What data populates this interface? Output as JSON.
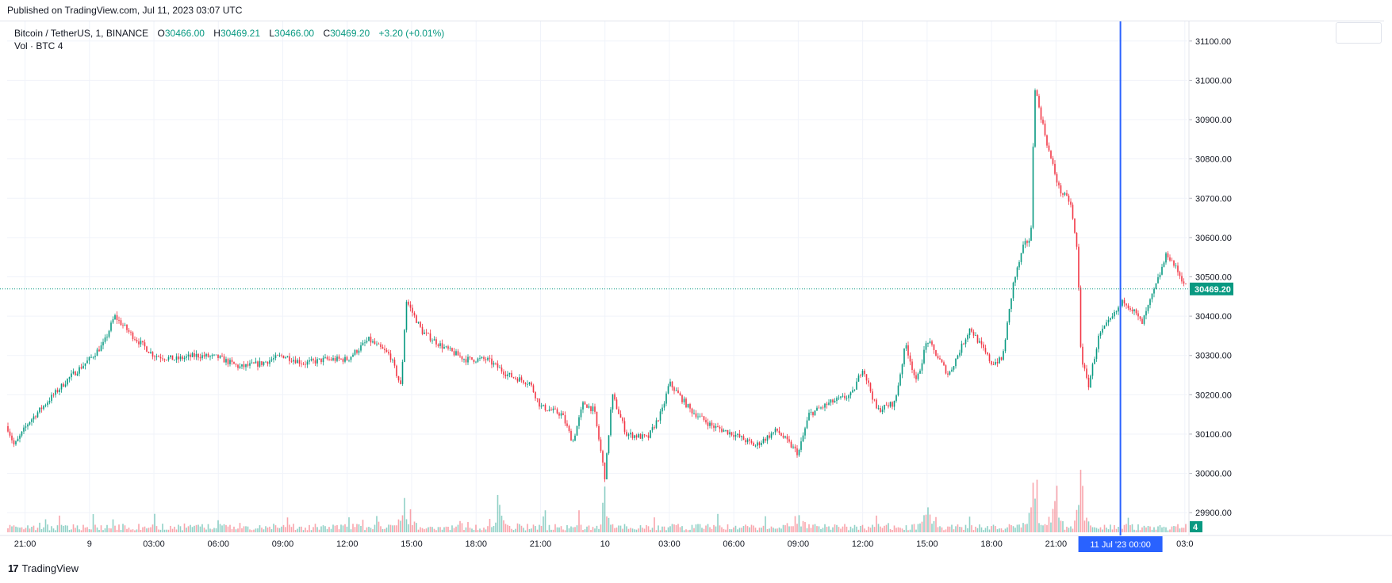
{
  "header": {
    "published": "Published on TradingView.com, Jul 11, 2023 03:07 UTC"
  },
  "legend": {
    "symbol": "Bitcoin / TetherUS, 1, BINANCE",
    "open_label": "O",
    "open": "30466.00",
    "high_label": "H",
    "high": "30469.21",
    "low_label": "L",
    "low": "30466.00",
    "close_label": "C",
    "close": "30469.20",
    "change": "+3.20 (+0.01%)",
    "vol_label": "Vol · BTC",
    "vol_value": "4"
  },
  "footer": {
    "brand": "TradingView",
    "logo_text": "17"
  },
  "colors": {
    "up": "#089981",
    "down": "#f23645",
    "crosshair": "#2962ff",
    "grid": "#f0f3fa"
  },
  "chart_data": {
    "type": "candlestick",
    "symbol": "BTCUSDT",
    "interval": "1",
    "ylim": [
      29850,
      31150
    ],
    "y_ticks": [
      29900,
      30000,
      30100,
      30200,
      30300,
      30400,
      30500,
      30600,
      30700,
      30800,
      30900,
      31000,
      31100
    ],
    "y_tick_labels": [
      "29900.00",
      "30000.00",
      "30100.00",
      "30200.00",
      "30300.00",
      "30400.00",
      "30500.00",
      "30600.00",
      "30700.00",
      "30800.00",
      "30900.00",
      "31000.00",
      "31100.00"
    ],
    "x_ticks": [
      "2023-07-08 21:00",
      "2023-07-09 00:00",
      "2023-07-09 03:00",
      "2023-07-09 06:00",
      "2023-07-09 09:00",
      "2023-07-09 12:00",
      "2023-07-09 15:00",
      "2023-07-09 18:00",
      "2023-07-09 21:00",
      "2023-07-10 00:00",
      "2023-07-10 03:00",
      "2023-07-10 06:00",
      "2023-07-10 09:00",
      "2023-07-10 12:00",
      "2023-07-10 15:00",
      "2023-07-10 18:00",
      "2023-07-10 21:00",
      "2023-07-11 03:00"
    ],
    "x_tick_labels": [
      "21:00",
      "9",
      "03:00",
      "06:00",
      "09:00",
      "12:00",
      "15:00",
      "18:00",
      "21:00",
      "10",
      "03:00",
      "06:00",
      "09:00",
      "12:00",
      "15:00",
      "18:00",
      "21:00",
      "03:0"
    ],
    "x_range": [
      "2023-07-08 20:10",
      "2023-07-11 03:07"
    ],
    "price_path": [
      [
        "2023-07-08 20:10",
        30120
      ],
      [
        "2023-07-08 20:30",
        30070
      ],
      [
        "2023-07-08 21:10",
        30130
      ],
      [
        "2023-07-08 22:00",
        30180
      ],
      [
        "2023-07-08 23:00",
        30240
      ],
      [
        "2023-07-09 00:00",
        30290
      ],
      [
        "2023-07-09 00:40",
        30330
      ],
      [
        "2023-07-09 01:10",
        30400
      ],
      [
        "2023-07-09 01:40",
        30370
      ],
      [
        "2023-07-09 02:00",
        30350
      ],
      [
        "2023-07-09 03:00",
        30300
      ],
      [
        "2023-07-09 04:00",
        30290
      ],
      [
        "2023-07-09 05:00",
        30300
      ],
      [
        "2023-07-09 06:00",
        30295
      ],
      [
        "2023-07-09 07:00",
        30270
      ],
      [
        "2023-07-09 08:00",
        30280
      ],
      [
        "2023-07-09 09:00",
        30300
      ],
      [
        "2023-07-09 10:00",
        30280
      ],
      [
        "2023-07-09 11:00",
        30290
      ],
      [
        "2023-07-09 12:00",
        30290
      ],
      [
        "2023-07-09 13:00",
        30340
      ],
      [
        "2023-07-09 14:00",
        30300
      ],
      [
        "2023-07-09 14:30",
        30220
      ],
      [
        "2023-07-09 14:45",
        30440
      ],
      [
        "2023-07-09 15:30",
        30360
      ],
      [
        "2023-07-09 16:30",
        30320
      ],
      [
        "2023-07-09 17:30",
        30290
      ],
      [
        "2023-07-09 18:30",
        30290
      ],
      [
        "2023-07-09 19:30",
        30250
      ],
      [
        "2023-07-09 20:30",
        30230
      ],
      [
        "2023-07-09 21:00",
        30170
      ],
      [
        "2023-07-09 22:00",
        30150
      ],
      [
        "2023-07-09 22:30",
        30080
      ],
      [
        "2023-07-09 23:00",
        30180
      ],
      [
        "2023-07-09 23:30",
        30160
      ],
      [
        "2023-07-10 00:00",
        29990
      ],
      [
        "2023-07-10 00:20",
        30200
      ],
      [
        "2023-07-10 01:00",
        30100
      ],
      [
        "2023-07-10 02:00",
        30090
      ],
      [
        "2023-07-10 02:40",
        30160
      ],
      [
        "2023-07-10 03:00",
        30230
      ],
      [
        "2023-07-10 04:00",
        30160
      ],
      [
        "2023-07-10 05:00",
        30120
      ],
      [
        "2023-07-10 06:00",
        30100
      ],
      [
        "2023-07-10 07:00",
        30070
      ],
      [
        "2023-07-10 08:00",
        30110
      ],
      [
        "2023-07-10 09:00",
        30050
      ],
      [
        "2023-07-10 09:30",
        30150
      ],
      [
        "2023-07-10 10:30",
        30180
      ],
      [
        "2023-07-10 11:30",
        30200
      ],
      [
        "2023-07-10 12:00",
        30270
      ],
      [
        "2023-07-10 12:40",
        30160
      ],
      [
        "2023-07-10 13:30",
        30180
      ],
      [
        "2023-07-10 14:00",
        30330
      ],
      [
        "2023-07-10 14:30",
        30230
      ],
      [
        "2023-07-10 15:00",
        30340
      ],
      [
        "2023-07-10 16:00",
        30250
      ],
      [
        "2023-07-10 17:00",
        30370
      ],
      [
        "2023-07-10 18:00",
        30280
      ],
      [
        "2023-07-10 18:30",
        30290
      ],
      [
        "2023-07-10 19:00",
        30480
      ],
      [
        "2023-07-10 19:30",
        30580
      ],
      [
        "2023-07-10 19:50",
        30600
      ],
      [
        "2023-07-10 20:00",
        30990
      ],
      [
        "2023-07-10 20:15",
        30920
      ],
      [
        "2023-07-10 20:40",
        30820
      ],
      [
        "2023-07-10 21:10",
        30720
      ],
      [
        "2023-07-10 21:40",
        30690
      ],
      [
        "2023-07-10 22:00",
        30560
      ],
      [
        "2023-07-10 22:10",
        30300
      ],
      [
        "2023-07-10 22:30",
        30220
      ],
      [
        "2023-07-10 23:00",
        30350
      ],
      [
        "2023-07-10 23:40",
        30400
      ],
      [
        "2023-07-11 00:10",
        30440
      ],
      [
        "2023-07-11 00:40",
        30410
      ],
      [
        "2023-07-11 01:00",
        30380
      ],
      [
        "2023-07-11 01:40",
        30480
      ],
      [
        "2023-07-11 02:10",
        30560
      ],
      [
        "2023-07-11 02:30",
        30530
      ],
      [
        "2023-07-11 03:07",
        30469.2
      ]
    ],
    "last_price": 30469.2,
    "last_price_label": "30469.20",
    "last_volume_label": "4",
    "crosshair_label": "11 Jul '23   00:00",
    "volume_peaks": [
      [
        "2023-07-09 14:45",
        180
      ],
      [
        "2023-07-10 00:00",
        140
      ],
      [
        "2023-07-10 20:00",
        240
      ],
      [
        "2023-07-10 22:10",
        180
      ],
      [
        "2023-07-09 19:00",
        120
      ],
      [
        "2023-07-10 09:00",
        90
      ],
      [
        "2023-07-10 15:00",
        100
      ],
      [
        "2023-07-10 21:00",
        130
      ]
    ],
    "grid": true
  }
}
